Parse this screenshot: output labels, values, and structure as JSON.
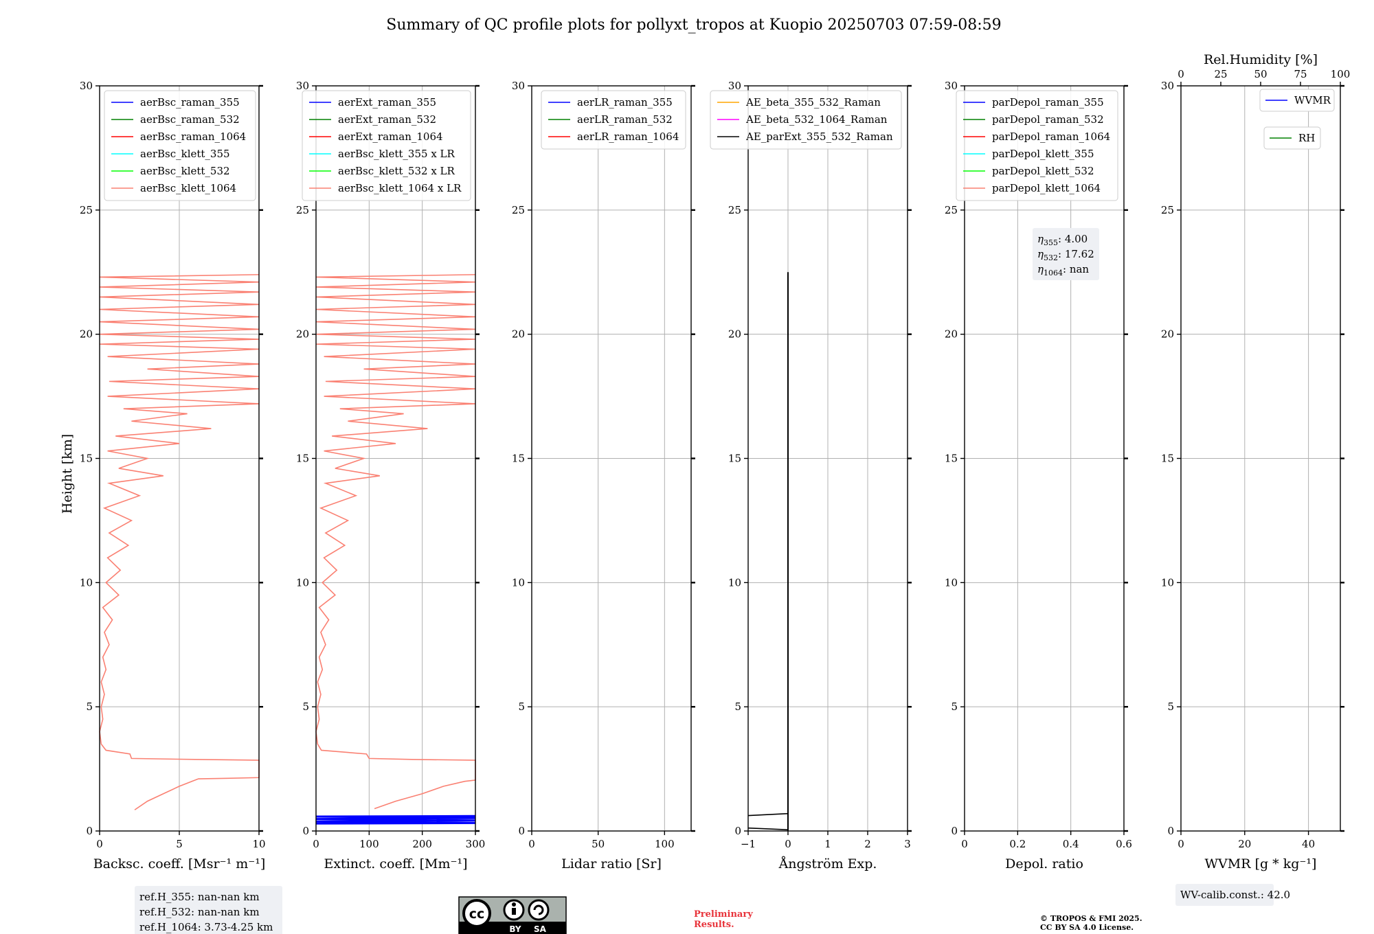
{
  "title": "Summary of QC profile plots for pollyxt_tropos at Kuopio 20250703 07:59-08:59",
  "ylabel": "Height [km]",
  "yticks": [
    "0",
    "5",
    "10",
    "15",
    "20",
    "25",
    "30"
  ],
  "colors": {
    "blue": "#0000ff",
    "green": "#008000",
    "red": "#ff0000",
    "cyan": "#00ffff",
    "lime": "#00ff00",
    "salmon": "#fa8072",
    "orange": "#ffa500",
    "magenta": "#ff00ff",
    "black": "#000000",
    "grid": "#b0b0b0",
    "box_bg": "#eef0f4"
  },
  "chart_data": [
    {
      "type": "line",
      "xlabel": "Backsc. coeff. [Msr⁻¹ m⁻¹]",
      "xlim": [
        0,
        10
      ],
      "ylim": [
        0,
        30
      ],
      "xticks": [
        0,
        5,
        10
      ],
      "series": [
        {
          "name": "aerBsc_raman_355",
          "color": "#0000ff"
        },
        {
          "name": "aerBsc_raman_532",
          "color": "#008000"
        },
        {
          "name": "aerBsc_raman_1064",
          "color": "#ff0000"
        },
        {
          "name": "aerBsc_klett_355",
          "color": "#00ffff"
        },
        {
          "name": "aerBsc_klett_532",
          "color": "#00ff00"
        },
        {
          "name": "aerBsc_klett_1064",
          "color": "#fa8072",
          "profile": [
            [
              2.2,
              0.85
            ],
            [
              3.0,
              1.2
            ],
            [
              4.0,
              1.5
            ],
            [
              5.0,
              1.8
            ],
            [
              5.8,
              2.0
            ],
            [
              6.2,
              2.1
            ],
            [
              8.0,
              2.12
            ],
            [
              10.0,
              2.15
            ],
            [
              10.0,
              2.85
            ],
            [
              6.0,
              2.88
            ],
            [
              2.0,
              2.92
            ],
            [
              1.9,
              3.1
            ],
            [
              0.4,
              3.25
            ],
            [
              0.1,
              3.5
            ],
            [
              0.0,
              4.0
            ],
            [
              0.2,
              4.5
            ],
            [
              0.1,
              5.0
            ],
            [
              0.3,
              5.5
            ],
            [
              0.1,
              6.0
            ],
            [
              0.4,
              6.5
            ],
            [
              0.2,
              7.0
            ],
            [
              0.6,
              7.5
            ],
            [
              0.3,
              8.0
            ],
            [
              0.8,
              8.5
            ],
            [
              0.2,
              9.0
            ],
            [
              1.2,
              9.5
            ],
            [
              0.4,
              10.0
            ],
            [
              1.3,
              10.5
            ],
            [
              0.5,
              11.0
            ],
            [
              1.8,
              11.5
            ],
            [
              0.6,
              12.0
            ],
            [
              2.0,
              12.5
            ],
            [
              0.3,
              13.0
            ],
            [
              2.5,
              13.5
            ],
            [
              0.6,
              14.0
            ],
            [
              4.0,
              14.3
            ],
            [
              1.2,
              14.6
            ],
            [
              3.0,
              15.0
            ],
            [
              0.5,
              15.3
            ],
            [
              5.0,
              15.6
            ],
            [
              1.0,
              15.9
            ],
            [
              7.0,
              16.2
            ],
            [
              2.0,
              16.5
            ],
            [
              5.5,
              16.8
            ],
            [
              1.5,
              17.0
            ],
            [
              10.0,
              17.2
            ],
            [
              0.5,
              17.5
            ],
            [
              10.0,
              17.8
            ],
            [
              0.6,
              18.1
            ],
            [
              10.0,
              18.3
            ],
            [
              3.0,
              18.6
            ],
            [
              10.0,
              18.8
            ],
            [
              0.5,
              19.1
            ],
            [
              10.0,
              19.4
            ],
            [
              0.0,
              19.6
            ],
            [
              10.0,
              19.8
            ],
            [
              0.0,
              20.0
            ],
            [
              10.0,
              20.2
            ],
            [
              0.0,
              20.5
            ],
            [
              10.0,
              20.7
            ],
            [
              0.0,
              21.0
            ],
            [
              10.0,
              21.2
            ],
            [
              0.0,
              21.5
            ],
            [
              10.0,
              21.7
            ],
            [
              0.0,
              21.9
            ],
            [
              10.0,
              22.1
            ],
            [
              0.0,
              22.3
            ],
            [
              10.0,
              22.4
            ]
          ]
        }
      ],
      "info_box": [
        "ref.H_355: nan-nan km",
        "ref.H_532: nan-nan km",
        "ref.H_1064: 3.73-4.25 km"
      ]
    },
    {
      "type": "line",
      "xlabel": "Extinct. coeff. [Mm⁻¹]",
      "xlim": [
        0,
        300
      ],
      "ylim": [
        0,
        30
      ],
      "xticks": [
        0,
        100,
        200,
        300
      ],
      "series": [
        {
          "name": "aerExt_raman_355",
          "color": "#0000ff",
          "profile": [
            [
              0,
              0.3
            ],
            [
              300,
              0.32
            ],
            [
              0,
              0.38
            ],
            [
              300,
              0.42
            ],
            [
              0,
              0.48
            ],
            [
              300,
              0.52
            ],
            [
              0,
              0.58
            ],
            [
              300,
              0.6
            ]
          ]
        },
        {
          "name": "aerExt_raman_532",
          "color": "#008000"
        },
        {
          "name": "aerExt_raman_1064",
          "color": "#ff0000"
        },
        {
          "name": "aerBsc_klett_355 x LR",
          "color": "#00ffff"
        },
        {
          "name": "aerBsc_klett_532 x LR",
          "color": "#00ff00"
        },
        {
          "name": "aerBsc_klett_1064 x LR",
          "color": "#fa8072",
          "profile": [
            [
              110,
              0.9
            ],
            [
              150,
              1.2
            ],
            [
              200,
              1.5
            ],
            [
              240,
              1.8
            ],
            [
              280,
              2.0
            ],
            [
              300,
              2.05
            ],
            [
              300,
              2.85
            ],
            [
              180,
              2.88
            ],
            [
              100,
              2.92
            ],
            [
              95,
              3.1
            ],
            [
              10,
              3.25
            ],
            [
              3,
              3.5
            ],
            [
              0,
              4.0
            ],
            [
              6,
              4.5
            ],
            [
              3,
              5.0
            ],
            [
              9,
              5.5
            ],
            [
              3,
              6.0
            ],
            [
              12,
              6.5
            ],
            [
              6,
              7.0
            ],
            [
              18,
              7.5
            ],
            [
              9,
              8.0
            ],
            [
              24,
              8.5
            ],
            [
              6,
              9.0
            ],
            [
              36,
              9.5
            ],
            [
              12,
              10.0
            ],
            [
              39,
              10.5
            ],
            [
              15,
              11.0
            ],
            [
              54,
              11.5
            ],
            [
              18,
              12.0
            ],
            [
              60,
              12.5
            ],
            [
              9,
              13.0
            ],
            [
              75,
              13.5
            ],
            [
              18,
              14.0
            ],
            [
              120,
              14.3
            ],
            [
              36,
              14.6
            ],
            [
              90,
              15.0
            ],
            [
              15,
              15.3
            ],
            [
              150,
              15.6
            ],
            [
              30,
              15.9
            ],
            [
              210,
              16.2
            ],
            [
              60,
              16.5
            ],
            [
              165,
              16.8
            ],
            [
              45,
              17.0
            ],
            [
              300,
              17.2
            ],
            [
              15,
              17.5
            ],
            [
              300,
              17.8
            ],
            [
              18,
              18.1
            ],
            [
              300,
              18.3
            ],
            [
              90,
              18.6
            ],
            [
              300,
              18.8
            ],
            [
              15,
              19.1
            ],
            [
              300,
              19.4
            ],
            [
              0,
              19.6
            ],
            [
              300,
              19.8
            ],
            [
              0,
              20.0
            ],
            [
              300,
              20.2
            ],
            [
              0,
              20.5
            ],
            [
              300,
              20.7
            ],
            [
              0,
              21.0
            ],
            [
              300,
              21.2
            ],
            [
              0,
              21.5
            ],
            [
              300,
              21.7
            ],
            [
              0,
              21.9
            ],
            [
              300,
              22.1
            ],
            [
              0,
              22.3
            ],
            [
              300,
              22.4
            ]
          ]
        }
      ]
    },
    {
      "type": "line",
      "xlabel": "Lidar ratio [Sr]",
      "xlim": [
        0,
        120
      ],
      "ylim": [
        0,
        30
      ],
      "xticks": [
        0,
        50,
        100
      ],
      "series": [
        {
          "name": "aerLR_raman_355",
          "color": "#0000ff"
        },
        {
          "name": "aerLR_raman_532",
          "color": "#008000"
        },
        {
          "name": "aerLR_raman_1064",
          "color": "#ff0000"
        }
      ]
    },
    {
      "type": "line",
      "xlabel": "Ångström Exp.",
      "xlim": [
        -1,
        3
      ],
      "ylim": [
        0,
        30
      ],
      "xticks": [
        -1,
        0,
        1,
        2,
        3
      ],
      "series": [
        {
          "name": "AE_beta_355_532_Raman",
          "color": "#ffa500"
        },
        {
          "name": "AE_beta_532_1064_Raman",
          "color": "#ff00ff",
          "profile": [
            [
              0,
              0.35
            ],
            [
              0,
              0.7
            ]
          ]
        },
        {
          "name": "AE_parExt_355_532_Raman",
          "color": "#000000",
          "profile": [
            [
              -1,
              0.12
            ],
            [
              0,
              0.05
            ],
            [
              0,
              0.7
            ],
            [
              -1,
              0.62
            ]
          ]
        }
      ],
      "vertical_line": {
        "x": 0,
        "y0": 0,
        "y1": 22.5,
        "color": "#000000"
      }
    },
    {
      "type": "line",
      "xlabel": "Depol. ratio",
      "xlim": [
        0,
        0.6
      ],
      "ylim": [
        0,
        30
      ],
      "xticks": [
        0.0,
        0.2,
        0.4,
        0.6
      ],
      "series": [
        {
          "name": "parDepol_raman_355",
          "color": "#0000ff"
        },
        {
          "name": "parDepol_raman_532",
          "color": "#008000"
        },
        {
          "name": "parDepol_raman_1064",
          "color": "#ff0000"
        },
        {
          "name": "parDepol_klett_355",
          "color": "#00ffff"
        },
        {
          "name": "parDepol_klett_532",
          "color": "#00ff00"
        },
        {
          "name": "parDepol_klett_1064",
          "color": "#fa8072"
        }
      ],
      "info_box": [
        "4.00",
        "17.62",
        "nan"
      ]
    },
    {
      "type": "line",
      "xlabel": "WVMR [g * kg⁻¹]",
      "x2label": "Rel.Humidity [%]",
      "xlim": [
        0,
        50
      ],
      "x2lim": [
        0,
        100
      ],
      "ylim": [
        0,
        30
      ],
      "xticks": [
        0,
        20,
        40
      ],
      "x2ticks": [
        0,
        25,
        50,
        75,
        100
      ],
      "series": [
        {
          "name": "WVMR",
          "color": "#0000ff"
        },
        {
          "name": "RH",
          "color": "#008000"
        }
      ],
      "info_box": [
        "WV-calib.const.: 42.0"
      ]
    }
  ],
  "footer": {
    "cc_label": "cc",
    "cc_by": "BY",
    "cc_sa": "SA",
    "prelim_line1": "Preliminary",
    "prelim_line2": "Results.",
    "copyright_line1": "© TROPOS & FMI 2025.",
    "copyright_line2": "CC BY SA 4.0 License."
  }
}
